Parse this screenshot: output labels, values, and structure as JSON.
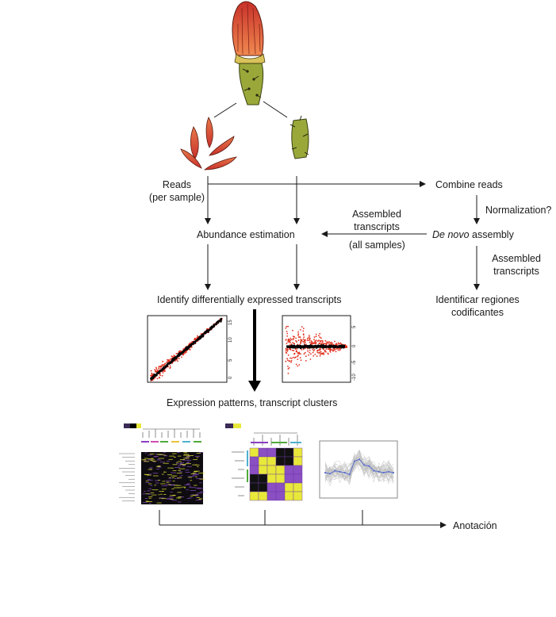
{
  "nodes": {
    "reads": "Reads",
    "reads_sub": "(per sample)",
    "combine_reads": "Combine reads",
    "normalization": "Normalization?",
    "assembled_left_1": "Assembled",
    "assembled_left_2": "transcripts",
    "all_samples": "(all samples)",
    "abundance": "Abundance estimation",
    "de_novo_italic": "De novo",
    "de_novo_rest": " assembly",
    "assembled_right_1": "Assembled",
    "assembled_right_2": "transcripts",
    "identify_de": "Identify differentially expressed transcripts",
    "identificar_1": "Identificar regiones",
    "identificar_2": "codificantes",
    "expression_patterns": "Expression patterns, transcript clusters",
    "anotacion": "Anotación"
  },
  "scatter_left_ticks": [
    "15",
    "10",
    "5",
    "0"
  ],
  "scatter_right_ticks": [
    "5",
    "0",
    "-5",
    "-10"
  ],
  "colors": {
    "petal_dark": "#c8302a",
    "petal_light": "#e8794a",
    "stem": "#9aa83a",
    "scatter_red": "#e0301e",
    "scatter_black": "#000000",
    "heat_purple": "#8a4fc2",
    "heat_yellow": "#e8e83a",
    "line_gray": "#bdbdbd",
    "line_blue": "#5a6fd0"
  }
}
